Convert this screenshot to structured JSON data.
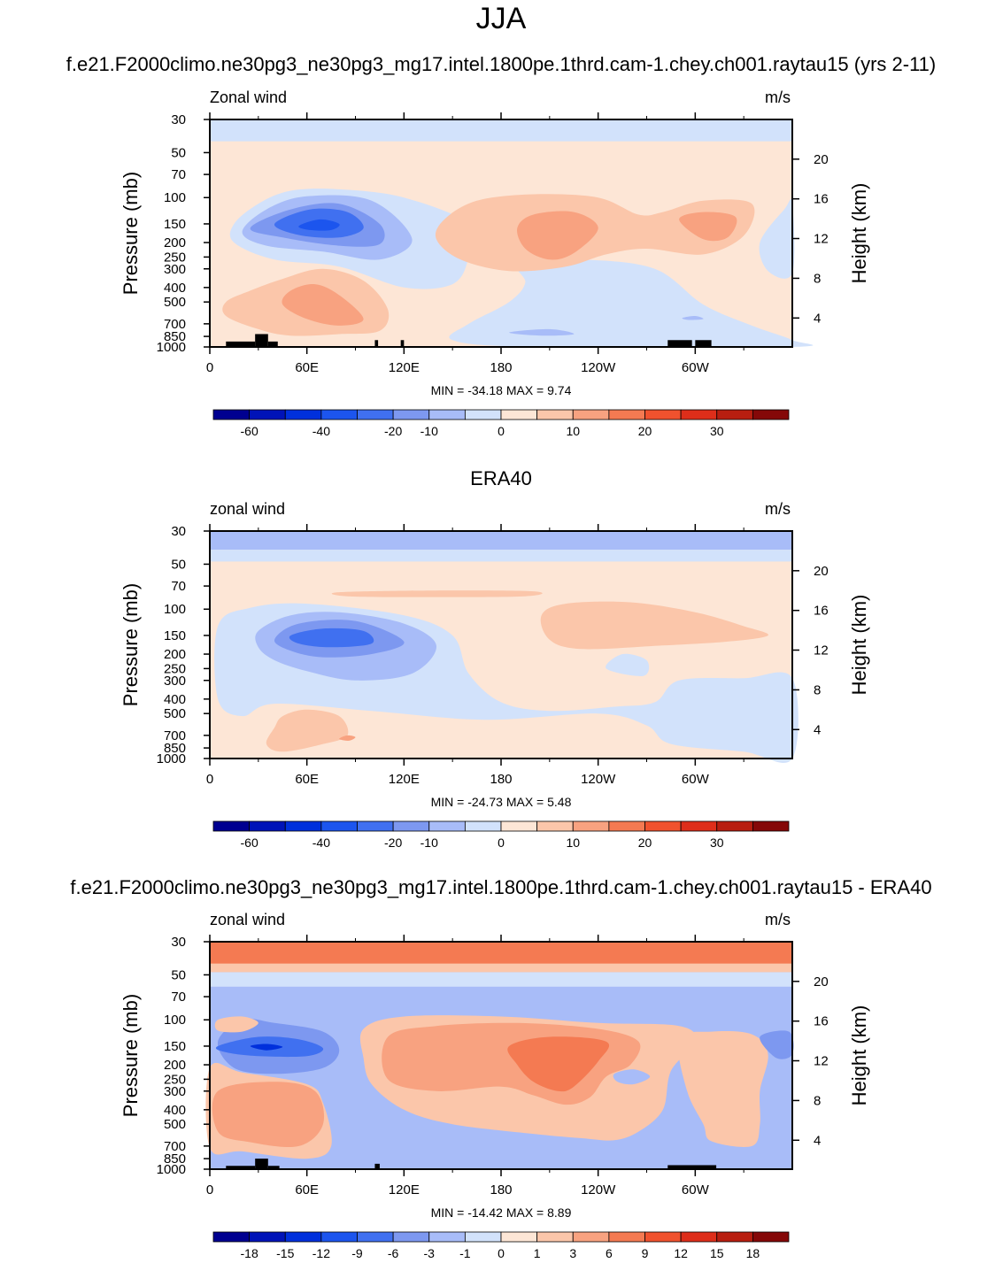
{
  "page_title": "JJA",
  "colors": {
    "blue": [
      "#000090",
      "#0013B8",
      "#0030DC",
      "#1C55EE",
      "#4070F0",
      "#7D98F0",
      "#A8BCF8",
      "#D2E2FB"
    ],
    "red": [
      "#FDE6D6",
      "#FBC6AA",
      "#F8A280",
      "#F47A52",
      "#F0522E",
      "#DE2E1A",
      "#B81E10",
      "#850808"
    ],
    "terrain": "#000000"
  },
  "panels": [
    {
      "title": "f.e21.F2000climo.ne30pg3_ne30pg3_mg17.intel.1800pe.1thrd.cam-1.chey.ch001.raytau15 (yrs 2-11)",
      "left_label": "Zonal wind",
      "right_label": "m/s",
      "minmax": "MIN = -34.18  MAX =   9.74",
      "colorbar_labels": [
        "-60",
        "-40",
        "-20",
        "-10",
        "0",
        "10",
        "20",
        "30"
      ]
    },
    {
      "title": "ERA40",
      "left_label": "zonal wind",
      "right_label": "m/s",
      "minmax": "MIN = -24.73  MAX =   5.48",
      "colorbar_labels": [
        "-60",
        "-40",
        "-20",
        "-10",
        "0",
        "10",
        "20",
        "30"
      ]
    },
    {
      "title": "f.e21.F2000climo.ne30pg3_ne30pg3_mg17.intel.1800pe.1thrd.cam-1.chey.ch001.raytau15 - ERA40",
      "left_label": "zonal wind",
      "right_label": "m/s",
      "minmax": "MIN = -14.42  MAX =   8.89",
      "colorbar_labels": [
        "-18",
        "-15",
        "-12",
        "-9",
        "-6",
        "-3",
        "-1",
        "0",
        "1",
        "3",
        "6",
        "9",
        "12",
        "15",
        "18"
      ]
    }
  ],
  "chart_data": [
    {
      "type": "heatmap",
      "title": "f.e21.F2000climo.ne30pg3_ne30pg3_mg17.intel.1800pe.1thrd.cam-1.chey.ch001.raytau15 (yrs 2-11)",
      "subtitle": "Zonal wind",
      "units": "m/s",
      "xlabel": "",
      "ylabel": "Pressure (mb)",
      "ylabel_right": "Height (km)",
      "x_ticks": [
        "0",
        "60E",
        "120E",
        "180",
        "120W",
        "60W"
      ],
      "xlim": [
        0,
        360
      ],
      "y_ticks": [
        "30",
        "50",
        "70",
        "100",
        "150",
        "200",
        "250",
        "300",
        "400",
        "500",
        "700",
        "850",
        "1000"
      ],
      "y_scale": "log",
      "ylim": [
        1000,
        30
      ],
      "y_right_ticks": [
        "20",
        "16",
        "12",
        "8",
        "4"
      ],
      "min": -34.18,
      "max": 9.74,
      "levels": [
        -60,
        -40,
        -20,
        -10,
        0,
        10,
        20,
        30
      ],
      "regions": [
        {
          "value": -5,
          "lon": [
            0,
            360
          ],
          "p": [
            30,
            45
          ],
          "desc": "light blue band at top"
        },
        {
          "value": 2,
          "lon": [
            0,
            360
          ],
          "p": [
            45,
            1000
          ],
          "desc": "weak easterly/westerly background"
        },
        {
          "value": -5,
          "lon": [
            20,
            160
          ],
          "p": [
            90,
            350
          ]
        },
        {
          "value": -15,
          "lon": [
            30,
            110
          ],
          "p": [
            110,
            230
          ]
        },
        {
          "value": -25,
          "lon": [
            45,
            85
          ],
          "p": [
            130,
            180
          ],
          "desc": "jet core min -34.18"
        },
        {
          "value": 7,
          "lon": [
            150,
            220
          ],
          "p": [
            120,
            280
          ]
        },
        {
          "value": 7,
          "lon": [
            280,
            320
          ],
          "p": [
            130,
            200
          ]
        },
        {
          "value": 7,
          "lon": [
            20,
            90
          ],
          "p": [
            350,
            850
          ]
        },
        {
          "value": -5,
          "lon": [
            190,
            330
          ],
          "p": [
            250,
            1000
          ]
        }
      ]
    },
    {
      "type": "heatmap",
      "title": "ERA40",
      "subtitle": "zonal wind",
      "units": "m/s",
      "xlabel": "",
      "ylabel": "Pressure (mb)",
      "ylabel_right": "Height (km)",
      "x_ticks": [
        "0",
        "60E",
        "120E",
        "180",
        "120W",
        "60W"
      ],
      "xlim": [
        0,
        360
      ],
      "y_ticks": [
        "30",
        "50",
        "70",
        "100",
        "150",
        "200",
        "250",
        "300",
        "400",
        "500",
        "700",
        "850",
        "1000"
      ],
      "y_scale": "log",
      "ylim": [
        1000,
        30
      ],
      "y_right_ticks": [
        "20",
        "16",
        "12",
        "8",
        "4"
      ],
      "min": -24.73,
      "max": 5.48,
      "levels": [
        -60,
        -40,
        -20,
        -10,
        0,
        10,
        20,
        30
      ],
      "regions": [
        {
          "value": -15,
          "lon": [
            0,
            360
          ],
          "p": [
            30,
            45
          ]
        },
        {
          "value": 2,
          "lon": [
            0,
            360
          ],
          "p": [
            45,
            1000
          ]
        },
        {
          "value": -5,
          "lon": [
            0,
            230
          ],
          "p": [
            90,
            450
          ]
        },
        {
          "value": -15,
          "lon": [
            30,
            140
          ],
          "p": [
            110,
            280
          ]
        },
        {
          "value": -25,
          "lon": [
            50,
            100
          ],
          "p": [
            130,
            180
          ]
        },
        {
          "value": 7,
          "lon": [
            200,
            340
          ],
          "p": [
            90,
            180
          ]
        },
        {
          "value": -5,
          "lon": [
            170,
            360
          ],
          "p": [
            300,
            1000
          ]
        }
      ]
    },
    {
      "type": "heatmap",
      "title": "f.e21.F2000climo.ne30pg3_ne30pg3_mg17.intel.1800pe.1thrd.cam-1.chey.ch001.raytau15 - ERA40",
      "subtitle": "zonal wind",
      "units": "m/s",
      "xlabel": "",
      "ylabel": "Pressure (mb)",
      "ylabel_right": "Height (km)",
      "x_ticks": [
        "0",
        "60E",
        "120E",
        "180",
        "120W",
        "60W"
      ],
      "xlim": [
        0,
        360
      ],
      "y_ticks": [
        "30",
        "50",
        "70",
        "100",
        "150",
        "200",
        "250",
        "300",
        "400",
        "500",
        "700",
        "850",
        "1000"
      ],
      "y_scale": "log",
      "ylim": [
        1000,
        30
      ],
      "y_right_ticks": [
        "20",
        "16",
        "12",
        "8",
        "4"
      ],
      "min": -14.42,
      "max": 8.89,
      "levels": [
        -18,
        -15,
        -12,
        -9,
        -6,
        -3,
        -1,
        0,
        1,
        3,
        6,
        9,
        12,
        15,
        18
      ],
      "regions": [
        {
          "value": 7,
          "lon": [
            0,
            360
          ],
          "p": [
            30,
            45
          ]
        },
        {
          "value": -4,
          "lon": [
            0,
            360
          ],
          "p": [
            45,
            1000
          ]
        },
        {
          "value": -8,
          "lon": [
            0,
            80
          ],
          "p": [
            120,
            200
          ]
        },
        {
          "value": 4,
          "lon": [
            100,
            280
          ],
          "p": [
            100,
            500
          ]
        },
        {
          "value": 7,
          "lon": [
            180,
            240
          ],
          "p": [
            130,
            300
          ]
        },
        {
          "value": 4,
          "lon": [
            290,
            360
          ],
          "p": [
            120,
            700
          ]
        },
        {
          "value": 4,
          "lon": [
            0,
            70
          ],
          "p": [
            250,
            800
          ]
        },
        {
          "value": -4,
          "lon": [
            250,
            270
          ],
          "p": [
            200,
            320
          ]
        }
      ]
    }
  ]
}
